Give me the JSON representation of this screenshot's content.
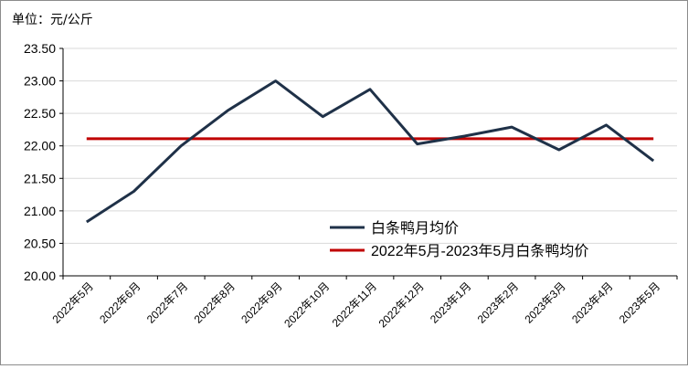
{
  "chart_data": {
    "type": "line",
    "unit_label": "单位：元/公斤",
    "categories": [
      "2022年5月",
      "2022年6月",
      "2022年7月",
      "2022年8月",
      "2022年9月",
      "2022年10月",
      "2022年11月",
      "2022年12月",
      "2023年1月",
      "2023年2月",
      "2023年3月",
      "2023年4月",
      "2023年5月"
    ],
    "yticks": [
      "20.00",
      "20.50",
      "21.00",
      "21.50",
      "22.00",
      "22.50",
      "23.00",
      "23.50"
    ],
    "ylim": [
      20.0,
      23.5
    ],
    "grid": true,
    "legend_position": "lower-center",
    "series": [
      {
        "name": "白条鸭月均价",
        "color": "#1f3148",
        "values": [
          20.83,
          21.3,
          22.0,
          22.55,
          23.0,
          22.45,
          22.87,
          22.03,
          22.15,
          22.29,
          21.94,
          22.32,
          21.77
        ]
      },
      {
        "name": "2022年5月-2023年5月白条鸭均价",
        "color": "#c00000",
        "values": [
          22.11,
          22.11,
          22.11,
          22.11,
          22.11,
          22.11,
          22.11,
          22.11,
          22.11,
          22.11,
          22.11,
          22.11,
          22.11
        ]
      }
    ]
  }
}
